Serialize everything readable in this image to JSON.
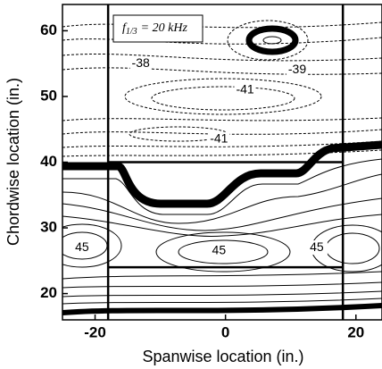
{
  "chart_data": {
    "type": "contour",
    "xlabel": "Spanwise location (in.)",
    "ylabel": "Chordwise location (in.)",
    "xlim": [
      -25,
      24
    ],
    "ylim": [
      16,
      64
    ],
    "xticks": [
      -20,
      0,
      20
    ],
    "yticks": [
      20,
      30,
      40,
      50,
      60
    ],
    "vlines": [
      -18,
      18
    ],
    "hlines": [
      40,
      24
    ],
    "legend_box": {
      "symbol": "f",
      "subscript": "1/3",
      "text": "= 20 kHz"
    },
    "annotations": [
      {
        "text": "-38",
        "x": -13,
        "y": 55
      },
      {
        "text": "-41",
        "x": 3,
        "y": 51
      },
      {
        "text": "-39",
        "x": 11,
        "y": 54
      },
      {
        "text": "-41",
        "x": -1,
        "y": 43.5
      },
      {
        "text": "45",
        "x": -22,
        "y": 27
      },
      {
        "text": "45",
        "x": -1,
        "y": 26.5
      },
      {
        "text": "45",
        "x": 14,
        "y": 27
      }
    ]
  }
}
